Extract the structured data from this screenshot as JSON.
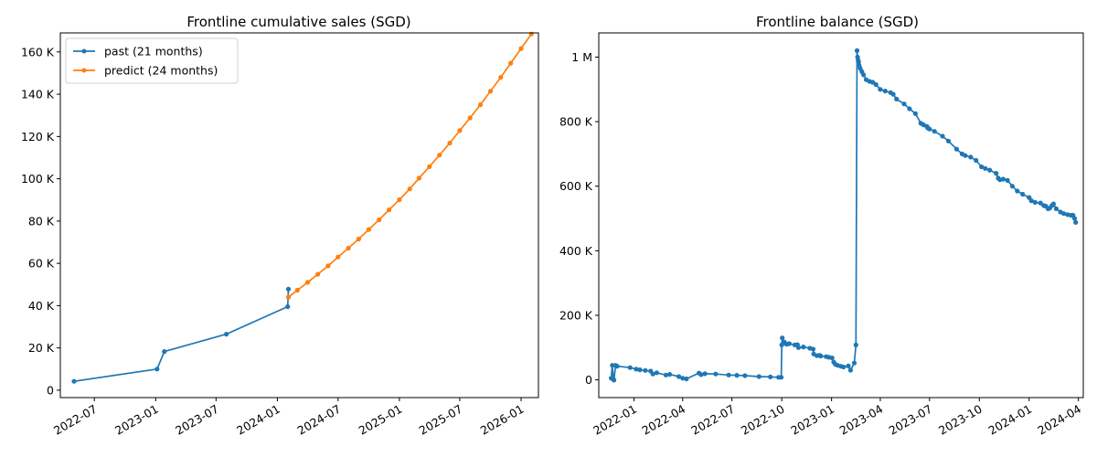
{
  "chart_data": [
    {
      "type": "line",
      "title": "Frontline cumulative sales (SGD)",
      "xlabel": "",
      "ylabel": "",
      "x_ticks": [
        "2022-07",
        "2023-01",
        "2023-07",
        "2024-01",
        "2024-07",
        "2025-01",
        "2025-07",
        "2026-01"
      ],
      "y_ticks": [
        "0",
        "20 K",
        "40 K",
        "60 K",
        "80 K",
        "100 K",
        "120 K",
        "140 K",
        "160 K"
      ],
      "xlim": [
        "2022-03-21",
        "2026-02-22"
      ],
      "ylim": [
        -3500,
        169000
      ],
      "grid": false,
      "legend_position": "top-left",
      "series": [
        {
          "name": "past (21 months)",
          "color": "#1f77b4",
          "x": [
            "2022-05-01",
            "2023-01-05",
            "2023-01-27",
            "2023-08-01",
            "2024-02-01",
            "2024-02-03"
          ],
          "y": [
            4200,
            10000,
            18300,
            26500,
            39500,
            47800
          ]
        },
        {
          "name": "predict (24 months)",
          "color": "#ff7f0e",
          "x": [
            "2024-02-03",
            "2024-03-01",
            "2024-04-01",
            "2024-05-01",
            "2024-06-01",
            "2024-07-01",
            "2024-08-01",
            "2024-09-01",
            "2024-10-01",
            "2024-11-01",
            "2024-12-01",
            "2025-01-01",
            "2025-02-01",
            "2025-03-01",
            "2025-04-01",
            "2025-05-01",
            "2025-06-01",
            "2025-07-01",
            "2025-08-01",
            "2025-09-01",
            "2025-10-01",
            "2025-11-01",
            "2025-12-01",
            "2026-01-01",
            "2026-02-01"
          ],
          "y": [
            44000,
            47300,
            51000,
            54800,
            58800,
            63000,
            67200,
            71500,
            76000,
            80600,
            85300,
            90100,
            95200,
            100300,
            105700,
            111200,
            116900,
            122800,
            128800,
            135000,
            141400,
            148000,
            154700,
            161600,
            168500
          ]
        }
      ]
    },
    {
      "type": "line",
      "title": "Frontline balance (SGD)",
      "xlabel": "",
      "ylabel": "",
      "x_ticks": [
        "2022-01",
        "2022-04",
        "2022-07",
        "2022-10",
        "2023-01",
        "2023-04",
        "2023-07",
        "2023-10",
        "2024-01",
        "2024-04"
      ],
      "y_ticks": [
        "0",
        "200 K",
        "400 K",
        "600 K",
        "800 K",
        "1 M"
      ],
      "xlim": [
        "2021-10-28",
        "2024-04-10"
      ],
      "ylim": [
        -55000,
        1075000
      ],
      "grid": false,
      "series": [
        {
          "color": "#1f77b4",
          "x": [
            "2021-11-20",
            "2021-11-22",
            "2021-11-24",
            "2021-11-25",
            "2021-11-28",
            "2021-12-01",
            "2021-12-25",
            "2022-01-05",
            "2022-01-12",
            "2022-01-22",
            "2022-02-01",
            "2022-02-05",
            "2022-02-12",
            "2022-03-01",
            "2022-03-08",
            "2022-03-25",
            "2022-04-01",
            "2022-04-08",
            "2022-05-01",
            "2022-05-05",
            "2022-05-12",
            "2022-06-01",
            "2022-06-25",
            "2022-07-10",
            "2022-07-25",
            "2022-08-20",
            "2022-09-10",
            "2022-09-25",
            "2022-09-30",
            "2022-10-01",
            "2022-10-02",
            "2022-10-06",
            "2022-10-10",
            "2022-10-15",
            "2022-10-25",
            "2022-10-30",
            "2022-11-01",
            "2022-11-10",
            "2022-11-22",
            "2022-11-28",
            "2022-11-29",
            "2022-12-05",
            "2022-12-10",
            "2022-12-12",
            "2022-12-22",
            "2022-12-27",
            "2023-01-02",
            "2023-01-05",
            "2023-01-08",
            "2023-01-12",
            "2023-01-18",
            "2023-01-23",
            "2023-02-01",
            "2023-02-05",
            "2023-02-12",
            "2023-02-15",
            "2023-02-17",
            "2023-02-18",
            "2023-02-19",
            "2023-02-20",
            "2023-02-21",
            "2023-02-23",
            "2023-02-26",
            "2023-03-01",
            "2023-03-06",
            "2023-03-12",
            "2023-03-18",
            "2023-03-24",
            "2023-04-01",
            "2023-04-10",
            "2023-04-20",
            "2023-04-25",
            "2023-05-01",
            "2023-05-15",
            "2023-05-25",
            "2023-06-05",
            "2023-06-15",
            "2023-06-20",
            "2023-06-26",
            "2023-06-28",
            "2023-07-01",
            "2023-07-10",
            "2023-07-25",
            "2023-08-05",
            "2023-08-20",
            "2023-08-30",
            "2023-09-05",
            "2023-09-15",
            "2023-09-25",
            "2023-10-05",
            "2023-10-12",
            "2023-10-20",
            "2023-11-01",
            "2023-11-05",
            "2023-11-08",
            "2023-11-14",
            "2023-11-22",
            "2023-12-01",
            "2023-12-10",
            "2023-12-20",
            "2024-01-01",
            "2024-01-05",
            "2024-01-12",
            "2024-01-22",
            "2024-01-28",
            "2024-02-01",
            "2024-02-05",
            "2024-02-08",
            "2024-02-12",
            "2024-02-15",
            "2024-02-20",
            "2024-02-28",
            "2024-03-05",
            "2024-03-12",
            "2024-03-18",
            "2024-03-22",
            "2024-03-25",
            "2024-03-27"
          ],
          "y": [
            5000,
            45000,
            2000,
            -1000,
            45000,
            42000,
            38000,
            33000,
            31000,
            29000,
            27000,
            18000,
            22000,
            15000,
            17000,
            10000,
            5000,
            3000,
            21000,
            16000,
            19000,
            18000,
            15000,
            14000,
            13000,
            10000,
            9000,
            8000,
            8000,
            108000,
            130000,
            117000,
            110000,
            112000,
            108000,
            109000,
            100000,
            102000,
            98000,
            95000,
            80000,
            75000,
            76000,
            74000,
            72000,
            70000,
            68000,
            55000,
            48000,
            45000,
            42000,
            40000,
            43000,
            30000,
            52000,
            108000,
            1020000,
            1000000,
            990000,
            985000,
            975000,
            965000,
            955000,
            945000,
            930000,
            925000,
            922000,
            915000,
            900000,
            895000,
            890000,
            885000,
            870000,
            855000,
            840000,
            825000,
            795000,
            790000,
            785000,
            780000,
            777000,
            770000,
            755000,
            740000,
            715000,
            700000,
            695000,
            690000,
            680000,
            660000,
            655000,
            650000,
            640000,
            625000,
            620000,
            622000,
            618000,
            600000,
            585000,
            575000,
            565000,
            555000,
            550000,
            548000,
            540000,
            538000,
            530000,
            532000,
            540000,
            545000,
            530000,
            520000,
            515000,
            512000,
            510000,
            510000,
            500000,
            488000
          ]
        }
      ]
    }
  ]
}
